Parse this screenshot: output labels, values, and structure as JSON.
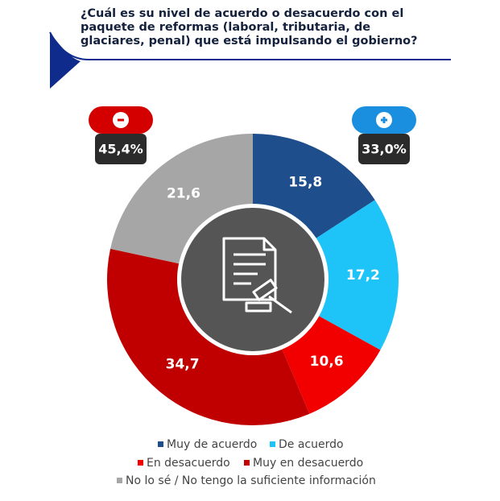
{
  "chart_data": {
    "type": "pie",
    "title": "¿Cuál es su nivel de acuerdo o desacuerdo con el paquete de reformas (laboral, tributaria, de glaciares, penal) que está impulsando el gobierno?",
    "categories": [
      "Muy de acuerdo",
      "De acuerdo",
      "En desacuerdo",
      "Muy en desacuerdo",
      "No lo sé / No tengo la suficiente información"
    ],
    "values": [
      15.8,
      17.2,
      10.6,
      34.7,
      21.6
    ],
    "value_labels": [
      "15,8",
      "17,2",
      "10,6",
      "34,7",
      "21,6"
    ],
    "colors": [
      "#1f4e8c",
      "#1ec3f7",
      "#f20000",
      "#c00000",
      "#a6a6a6"
    ],
    "summary": [
      {
        "value": 45.4,
        "label": "45,4%"
      },
      {
        "value": 33.0,
        "label": "33,0%"
      }
    ],
    "legend": "bottom"
  }
}
